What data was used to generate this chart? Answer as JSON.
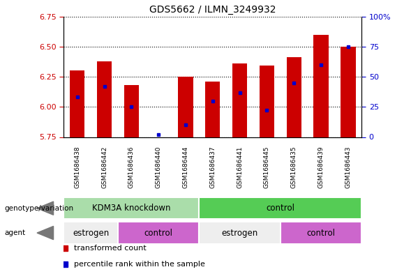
{
  "title": "GDS5662 / ILMN_3249932",
  "samples": [
    "GSM1686438",
    "GSM1686442",
    "GSM1686436",
    "GSM1686440",
    "GSM1686444",
    "GSM1686437",
    "GSM1686441",
    "GSM1686445",
    "GSM1686435",
    "GSM1686439",
    "GSM1686443"
  ],
  "transformed_count": [
    6.3,
    6.38,
    6.18,
    5.75,
    6.25,
    6.21,
    6.36,
    6.34,
    6.41,
    6.6,
    6.5
  ],
  "percentile_rank": [
    33,
    42,
    25,
    2,
    10,
    30,
    37,
    22,
    45,
    60,
    75
  ],
  "ylim_left": [
    5.75,
    6.75
  ],
  "ylim_right": [
    0,
    100
  ],
  "yticks_left": [
    5.75,
    6.0,
    6.25,
    6.5,
    6.75
  ],
  "yticks_right": [
    0,
    25,
    50,
    75,
    100
  ],
  "ytick_labels_right": [
    "0",
    "25",
    "50",
    "75",
    "100%"
  ],
  "bar_color": "#cc0000",
  "percentile_color": "#0000cc",
  "bar_width": 0.55,
  "genotype_groups": [
    {
      "label": "KDM3A knockdown",
      "start": 0,
      "end": 5,
      "color": "#aaddaa"
    },
    {
      "label": "control",
      "start": 5,
      "end": 11,
      "color": "#55cc55"
    }
  ],
  "agent_groups": [
    {
      "label": "estrogen",
      "start": 0,
      "end": 2,
      "color": "#eeeeee"
    },
    {
      "label": "control",
      "start": 2,
      "end": 5,
      "color": "#cc66cc"
    },
    {
      "label": "estrogen",
      "start": 5,
      "end": 8,
      "color": "#eeeeee"
    },
    {
      "label": "control",
      "start": 8,
      "end": 11,
      "color": "#cc66cc"
    }
  ],
  "legend_items": [
    {
      "label": "transformed count",
      "color": "#cc0000"
    },
    {
      "label": "percentile rank within the sample",
      "color": "#0000cc"
    }
  ],
  "sample_bg_color": "#cccccc",
  "label_color_left": "#cc0000",
  "label_color_right": "#0000cc"
}
